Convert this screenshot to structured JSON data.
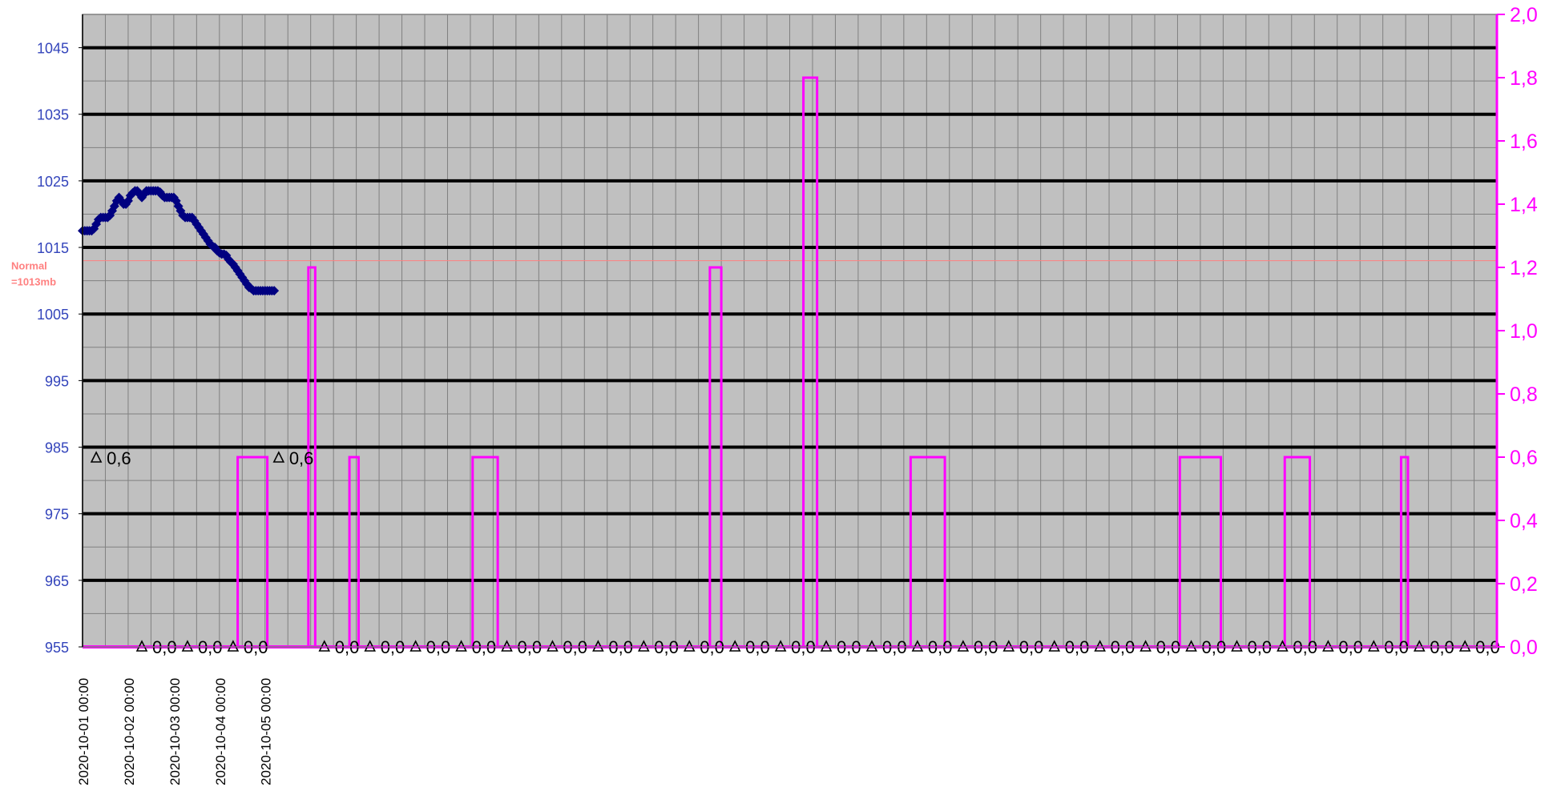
{
  "chart_data": {
    "type": "line",
    "title": "",
    "xlabel": "",
    "ylabel_left": "",
    "ylabel_right": "",
    "x_tick_labels": [
      "2020-10-01 00:00",
      "2020-10-02 00:00",
      "2020-10-03 00:00",
      "2020-10-04 00:00",
      "2020-10-05 00:00"
    ],
    "left_axis": {
      "range": [
        955,
        1050
      ],
      "ticks": [
        955,
        965,
        975,
        985,
        995,
        1005,
        1015,
        1025,
        1035,
        1045
      ],
      "tick_labels": [
        "955",
        "965",
        "975",
        "985",
        "995",
        "1005",
        "1015",
        "1025",
        "1035",
        "1045"
      ],
      "color": "#3344bb"
    },
    "right_axis": {
      "range": [
        0,
        2.0
      ],
      "ticks": [
        0,
        0.2,
        0.4,
        0.6,
        0.8,
        1.0,
        1.2,
        1.4,
        1.6,
        1.8,
        2.0
      ],
      "tick_labels": [
        "0,0",
        "0,2",
        "0,4",
        "0,6",
        "0,8",
        "1,0",
        "1,2",
        "1,4",
        "1,6",
        "1,8",
        "2,0"
      ],
      "color": "#ff00ff"
    },
    "normal_line": {
      "value": 1013,
      "label_line1": "Normal",
      "label_line2": "=1013mb",
      "color": "#ff8080"
    },
    "total_slots": 62,
    "series": [
      {
        "axis": "left",
        "color": "#000080",
        "x": [
          0.0,
          0.1,
          0.2,
          0.3,
          0.4,
          0.5,
          0.6,
          0.7,
          0.8,
          0.9,
          1.0,
          1.1,
          1.2,
          1.3,
          1.4,
          1.5,
          1.6,
          1.7,
          1.8,
          1.9,
          2.0,
          2.1,
          2.2,
          2.3,
          2.4,
          2.5,
          2.6,
          2.7,
          2.8,
          2.9,
          3.0,
          3.1,
          3.2,
          3.3,
          3.4,
          3.5,
          3.6,
          3.7,
          3.8,
          3.9,
          4.0,
          4.1,
          4.2,
          4.3,
          4.4,
          4.5,
          4.6,
          4.7,
          4.8,
          4.9,
          5.0,
          5.1,
          5.2,
          5.3,
          5.4,
          5.5,
          5.6,
          5.7,
          5.8,
          5.9,
          6.0,
          6.1,
          6.2,
          6.3,
          6.4,
          6.5,
          6.6,
          6.7,
          6.8,
          6.9,
          7.0,
          7.1,
          7.2,
          7.3,
          7.4,
          7.5,
          7.6,
          7.7,
          7.8,
          7.9,
          8.0,
          8.1,
          8.2,
          8.3,
          8.4
        ],
        "values": [
          1017.5,
          1017.5,
          1017.5,
          1017.5,
          1017.5,
          1017.8,
          1018.5,
          1019.2,
          1019.5,
          1019.5,
          1019.5,
          1019.5,
          1019.8,
          1020.5,
          1021.2,
          1022.0,
          1022.5,
          1022.0,
          1021.5,
          1021.5,
          1022.0,
          1022.8,
          1023.2,
          1023.5,
          1023.5,
          1023.0,
          1022.5,
          1023.0,
          1023.5,
          1023.5,
          1023.5,
          1023.5,
          1023.5,
          1023.5,
          1023.3,
          1022.8,
          1022.5,
          1022.5,
          1022.5,
          1022.5,
          1022.5,
          1022.0,
          1021.2,
          1020.5,
          1019.8,
          1019.5,
          1019.5,
          1019.5,
          1019.5,
          1019.0,
          1018.5,
          1018.0,
          1017.5,
          1017.0,
          1016.5,
          1016.0,
          1015.5,
          1015.2,
          1015.0,
          1014.5,
          1014.2,
          1014.0,
          1014.0,
          1013.8,
          1013.2,
          1012.8,
          1012.5,
          1012.0,
          1011.5,
          1011.0,
          1010.5,
          1010.0,
          1009.5,
          1009.0,
          1008.8,
          1008.5,
          1008.5,
          1008.5,
          1008.5,
          1008.5,
          1008.5,
          1008.5,
          1008.5,
          1008.5,
          1008.5
        ]
      },
      {
        "axis": "right",
        "color": "#ff00ff",
        "pulses": [
          {
            "start": 6.8,
            "end": 8.1,
            "value": 0.6
          },
          {
            "start": 9.9,
            "end": 10.2,
            "value": 1.2
          },
          {
            "start": 11.7,
            "end": 12.1,
            "value": 0.6
          },
          {
            "start": 17.1,
            "end": 18.2,
            "value": 0.6
          },
          {
            "start": 27.5,
            "end": 28.0,
            "value": 1.2
          },
          {
            "start": 31.6,
            "end": 32.2,
            "value": 1.8
          },
          {
            "start": 36.3,
            "end": 37.8,
            "value": 0.6
          },
          {
            "start": 48.1,
            "end": 49.9,
            "value": 0.6
          },
          {
            "start": 52.7,
            "end": 53.8,
            "value": 0.6
          },
          {
            "start": 57.8,
            "end": 58.1,
            "value": 0.6
          }
        ]
      }
    ],
    "annotations": [
      {
        "x": 0.6,
        "right_value": 0.6,
        "text": "0,6"
      },
      {
        "x": 8.6,
        "right_value": 0.6,
        "text": "0,6"
      },
      {
        "x": 2.6,
        "right_value": 0,
        "text": "0,0"
      },
      {
        "x": 4.6,
        "right_value": 0,
        "text": "0,0"
      },
      {
        "x": 6.6,
        "right_value": 0,
        "text": "0,0"
      },
      {
        "x": 10.6,
        "right_value": 0,
        "text": "0,0"
      },
      {
        "x": 12.6,
        "right_value": 0,
        "text": "0,0"
      },
      {
        "x": 14.6,
        "right_value": 0,
        "text": "0,0"
      },
      {
        "x": 16.6,
        "right_value": 0,
        "text": "0,0"
      },
      {
        "x": 18.6,
        "right_value": 0,
        "text": "0,0"
      },
      {
        "x": 20.6,
        "right_value": 0,
        "text": "0,0"
      },
      {
        "x": 22.6,
        "right_value": 0,
        "text": "0,0"
      },
      {
        "x": 24.6,
        "right_value": 0,
        "text": "0,0"
      },
      {
        "x": 26.6,
        "right_value": 0,
        "text": "0,0"
      },
      {
        "x": 28.6,
        "right_value": 0,
        "text": "0,0"
      },
      {
        "x": 30.6,
        "right_value": 0,
        "text": "0,0"
      },
      {
        "x": 32.6,
        "right_value": 0,
        "text": "0,0"
      },
      {
        "x": 34.6,
        "right_value": 0,
        "text": "0,0"
      },
      {
        "x": 36.6,
        "right_value": 0,
        "text": "0,0"
      },
      {
        "x": 38.6,
        "right_value": 0,
        "text": "0,0"
      },
      {
        "x": 40.6,
        "right_value": 0,
        "text": "0,0"
      },
      {
        "x": 42.6,
        "right_value": 0,
        "text": "0,0"
      },
      {
        "x": 44.6,
        "right_value": 0,
        "text": "0,0"
      },
      {
        "x": 46.6,
        "right_value": 0,
        "text": "0,0"
      },
      {
        "x": 48.6,
        "right_value": 0,
        "text": "0,0"
      },
      {
        "x": 50.6,
        "right_value": 0,
        "text": "0,0"
      },
      {
        "x": 52.6,
        "right_value": 0,
        "text": "0,0"
      },
      {
        "x": 54.6,
        "right_value": 0,
        "text": "0,0"
      },
      {
        "x": 56.6,
        "right_value": 0,
        "text": "0,0"
      },
      {
        "x": 58.6,
        "right_value": 0,
        "text": "0,0"
      },
      {
        "x": 60.6,
        "right_value": 0,
        "text": "0,0"
      }
    ],
    "grid": true,
    "legend": "none",
    "plot_background": "#c0c0c0"
  }
}
